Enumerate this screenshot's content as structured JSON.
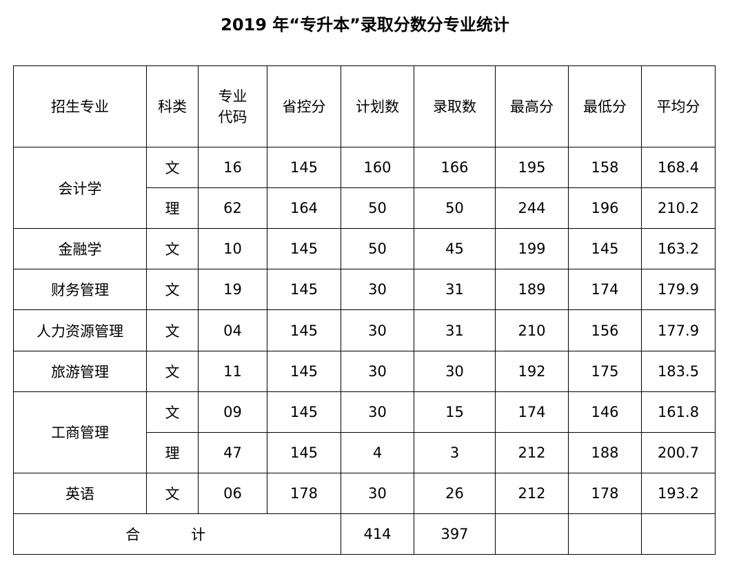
{
  "title": "2019 年“专升本”录取分数分专业统计",
  "headers": {
    "major": "招生专业",
    "category": "科类",
    "code_top": "专业",
    "code_bottom": "代码",
    "province_line": "省控分",
    "plan": "计划数",
    "admitted": "录取数",
    "max": "最高分",
    "min": "最低分",
    "avg": "平均分"
  },
  "rows": [
    {
      "major": "会计学",
      "category": "文",
      "code": "16",
      "province_line": "145",
      "plan": "160",
      "admitted": "166",
      "max": "195",
      "min": "158",
      "avg": "168.4"
    },
    {
      "major": "",
      "category": "理",
      "code": "62",
      "province_line": "164",
      "plan": "50",
      "admitted": "50",
      "max": "244",
      "min": "196",
      "avg": "210.2"
    },
    {
      "major": "金融学",
      "category": "文",
      "code": "10",
      "province_line": "145",
      "plan": "50",
      "admitted": "45",
      "max": "199",
      "min": "145",
      "avg": "163.2"
    },
    {
      "major": "财务管理",
      "category": "文",
      "code": "19",
      "province_line": "145",
      "plan": "30",
      "admitted": "31",
      "max": "189",
      "min": "174",
      "avg": "179.9"
    },
    {
      "major": "人力资源管理",
      "category": "文",
      "code": "04",
      "province_line": "145",
      "plan": "30",
      "admitted": "31",
      "max": "210",
      "min": "156",
      "avg": "177.9"
    },
    {
      "major": "旅游管理",
      "category": "文",
      "code": "11",
      "province_line": "145",
      "plan": "30",
      "admitted": "30",
      "max": "192",
      "min": "175",
      "avg": "183.5"
    },
    {
      "major": "工商管理",
      "category": "文",
      "code": "09",
      "province_line": "145",
      "plan": "30",
      "admitted": "15",
      "max": "174",
      "min": "146",
      "avg": "161.8"
    },
    {
      "major": "",
      "category": "理",
      "code": "47",
      "province_line": "145",
      "plan": "4",
      "admitted": "3",
      "max": "212",
      "min": "188",
      "avg": "200.7"
    },
    {
      "major": "英语",
      "category": "文",
      "code": "06",
      "province_line": "178",
      "plan": "30",
      "admitted": "26",
      "max": "212",
      "min": "178",
      "avg": "193.2"
    }
  ],
  "total": {
    "label": "合 计",
    "plan": "414",
    "admitted": "397"
  }
}
